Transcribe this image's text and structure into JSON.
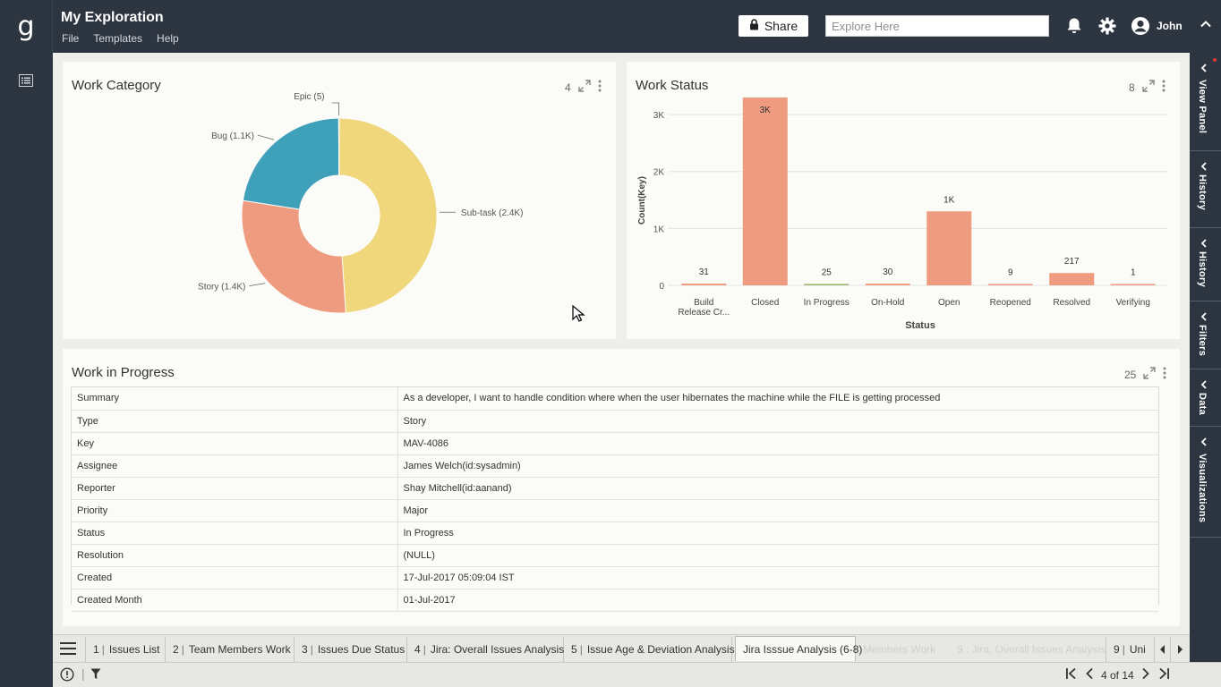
{
  "app": {
    "logo": "g",
    "title": "My Exploration",
    "menu": [
      "File",
      "Templates",
      "Help"
    ]
  },
  "header": {
    "share_label": "Share",
    "search_placeholder": "Explore Here",
    "user_name": "John"
  },
  "panels": {
    "work_category": {
      "title": "Work Category",
      "count": "4",
      "chart_data": {
        "type": "pie",
        "labels": [
          "Sub-task (2.4K)",
          "Story (1.4K)",
          "Bug (1.1K)",
          "Epic (5)"
        ],
        "categories": [
          "Sub-task",
          "Story",
          "Bug",
          "Epic"
        ],
        "values": [
          2400,
          1400,
          1100,
          5
        ],
        "colors": [
          "#f0d77c",
          "#ef9b80",
          "#3fa0ba",
          "#777777"
        ]
      }
    },
    "work_status": {
      "title": "Work Status",
      "count": "8",
      "chart_data": {
        "type": "bar",
        "categories": [
          "Build Release Cr...",
          "Closed",
          "In Progress",
          "On-Hold",
          "Open",
          "Reopened",
          "Resolved",
          "Verifying"
        ],
        "category_lines": [
          [
            "Build",
            "Release Cr..."
          ],
          [
            "Closed"
          ],
          [
            "In Progress"
          ],
          [
            "On-Hold"
          ],
          [
            "Open"
          ],
          [
            "Reopened"
          ],
          [
            "Resolved"
          ],
          [
            "Verifying"
          ]
        ],
        "values": [
          31,
          3300,
          25,
          30,
          1300,
          9,
          217,
          1
        ],
        "data_labels": [
          "31",
          "3K",
          "25",
          "30",
          "1K",
          "9",
          "217",
          "1"
        ],
        "bar_colors": [
          "#ef9b80",
          "#ef9b80",
          "#9bb36b",
          "#ef9b80",
          "#ef9b80",
          "#ef9b80",
          "#ef9b80",
          "#ef9b80"
        ],
        "xlabel": "Status",
        "ylabel": "Count(Key)",
        "yticks": [
          0,
          1000,
          2000,
          3000
        ],
        "ytick_labels": [
          "0",
          "1K",
          "2K",
          "3K"
        ],
        "ylim": [
          0,
          3300
        ],
        "grid": true
      }
    },
    "work_in_progress": {
      "title": "Work in Progress",
      "count": "25",
      "rows": [
        {
          "field": "Summary",
          "value": "As a developer, I want to handle condition where when the user hibernates the machine while the FILE is getting processed"
        },
        {
          "field": "Type",
          "value": "Story"
        },
        {
          "field": "Key",
          "value": "MAV-4086"
        },
        {
          "field": "Assignee",
          "value": "James Welch(id:sysadmin)"
        },
        {
          "field": "Reporter",
          "value": "Shay Mitchell(id:aanand)"
        },
        {
          "field": "Priority",
          "value": "Major"
        },
        {
          "field": "Status",
          "value": "In Progress"
        },
        {
          "field": "Resolution",
          "value": "(NULL)"
        },
        {
          "field": "Created",
          "value": "17-Jul-2017 05:09:04 IST"
        },
        {
          "field": "Created Month",
          "value": "01-Jul-2017"
        }
      ]
    }
  },
  "right_panel_tabs": [
    "View Panel",
    "History",
    "History",
    "Filters",
    "Data",
    "Visualizations"
  ],
  "tabs": [
    {
      "num": "1",
      "label": "Issues List"
    },
    {
      "num": "2",
      "label": "Team Members Work"
    },
    {
      "num": "3",
      "label": "Issues Due Status"
    },
    {
      "num": "4",
      "label": "Jira: Overall Issues Analysis"
    },
    {
      "num": "5",
      "label": "Issue Age & Deviation Analysis"
    }
  ],
  "active_tab": "Jira Isssue Analysis (6-8)",
  "ghost_tabs": [
    "Members Work",
    "9 : Jira: Overall Issues Analysis"
  ],
  "overflow_tab": {
    "num": "9",
    "label": "Uni"
  },
  "pager": {
    "text": "4 of 14"
  }
}
